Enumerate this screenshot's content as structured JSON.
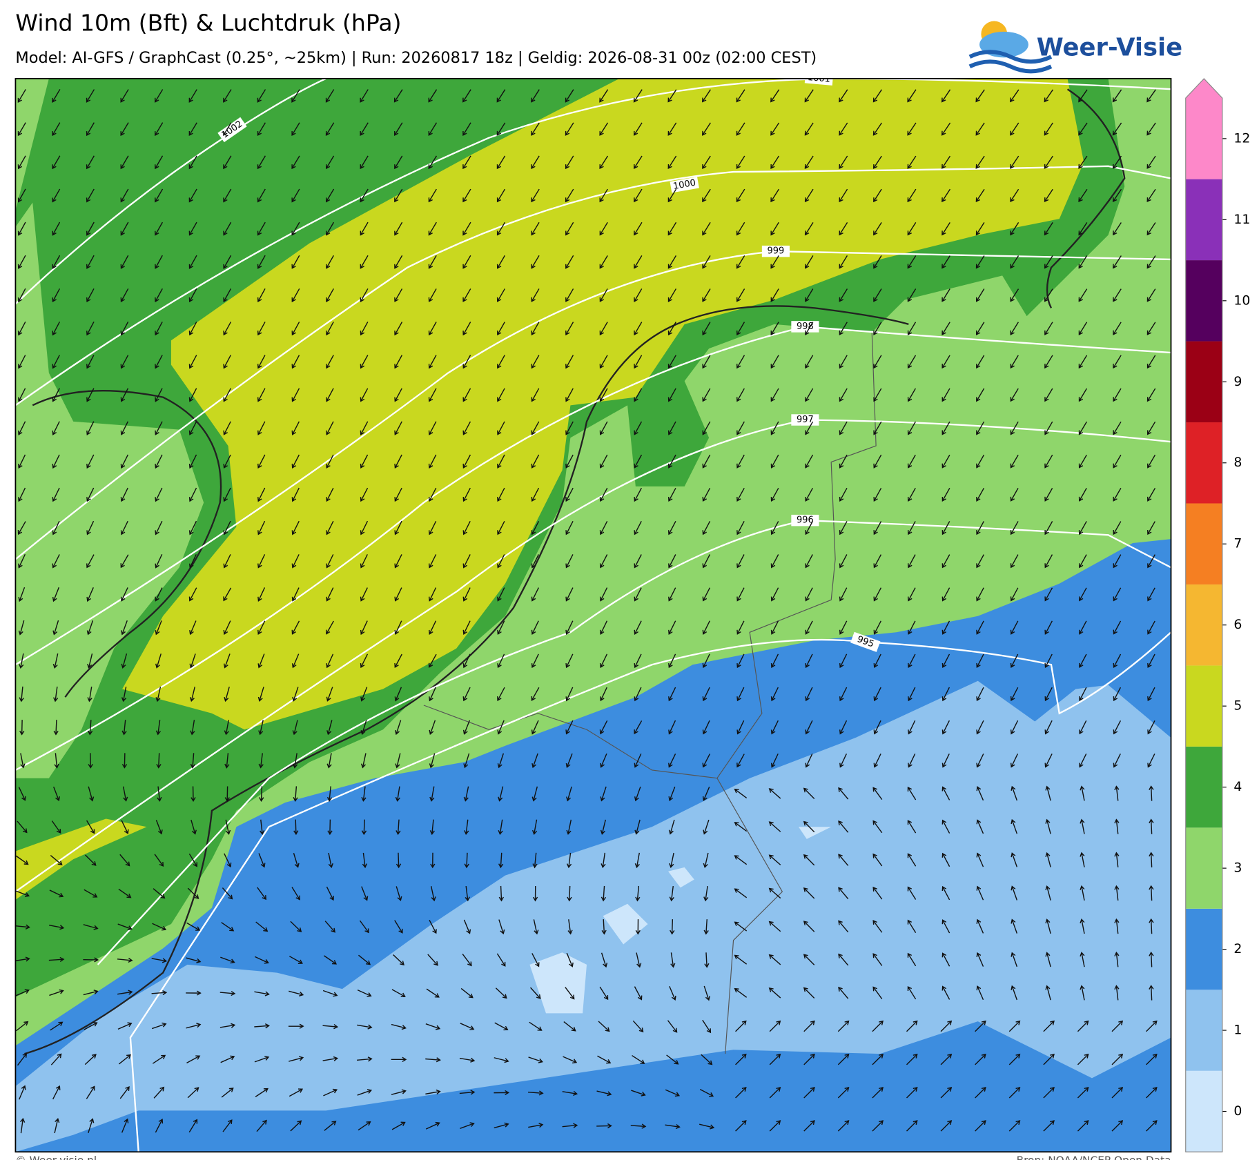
{
  "header": {
    "title": "Wind 10m (Bft) & Luchtdruk (hPa)",
    "subtitle": "Model: AI-GFS / GraphCast (0.25°, ~25km)  |  Run: 20260817 18z  |  Geldig: 2026-08-31 00z (02:00 CEST)"
  },
  "logo": "Weer-Visie",
  "isobars": [
    1002,
    1001,
    1000,
    999,
    998,
    997,
    996,
    995
  ],
  "legend": {
    "ticks": [
      0,
      1,
      2,
      3,
      4,
      5,
      6,
      7,
      8,
      9,
      10,
      11,
      12
    ],
    "colors": [
      "#cde6fb",
      "#8fc2ee",
      "#3d8ddf",
      "#8fd66b",
      "#3ea73b",
      "#c9d81f",
      "#f5b731",
      "#f57f22",
      "#de2126",
      "#9b0015",
      "#55005e",
      "#8a30b8",
      "#fd88c9"
    ]
  },
  "footer": {
    "left": "© Weer-visie.nl",
    "right": "Bron: NOAA/NCEP Open Data"
  }
}
